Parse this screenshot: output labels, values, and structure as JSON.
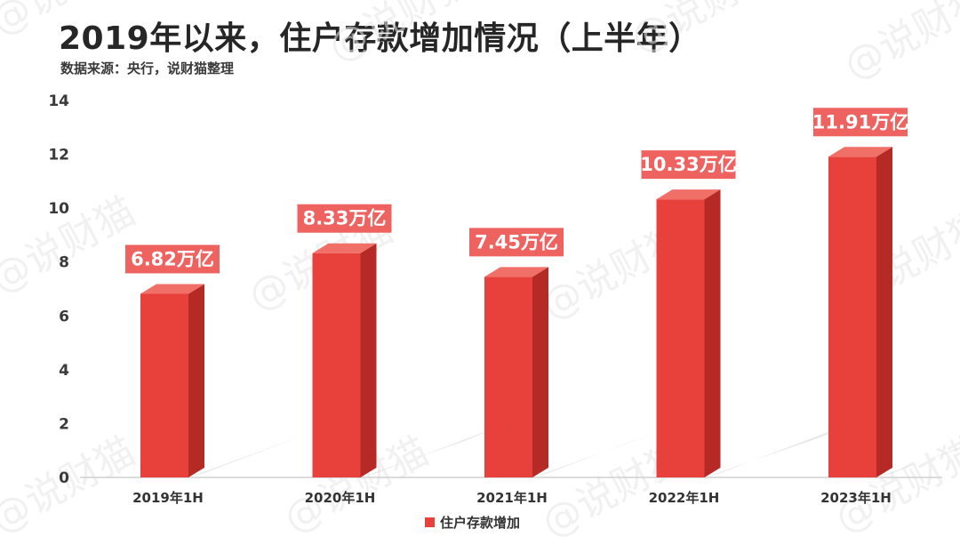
{
  "title": "2019年以来，住户存款增加情况（上半年）",
  "subtitle": "数据来源：央行，说财猫整理",
  "watermark": "@说财猫",
  "colors": {
    "bar_front": "#E8403A",
    "bar_side": "#B52A25",
    "bar_top": "#F07068",
    "label_bg": "#EE6260",
    "shadow": "#d6d6d6",
    "axis": "#d0d0d0"
  },
  "chart_data": {
    "type": "bar",
    "categories": [
      "2019年1H",
      "2020年1H",
      "2021年1H",
      "2022年1H",
      "2023年1H"
    ],
    "series": [
      {
        "name": "住户存款增加",
        "values": [
          6.82,
          8.33,
          7.45,
          10.33,
          11.91
        ],
        "labels": [
          "6.82万亿",
          "8.33万亿",
          "7.45万亿",
          "10.33万亿",
          "11.91万亿"
        ]
      }
    ],
    "ylim": [
      0,
      14
    ],
    "yticks": [
      "0",
      "2",
      "4",
      "6",
      "8",
      "10",
      "12",
      "14"
    ],
    "legend_position": "bottom"
  }
}
